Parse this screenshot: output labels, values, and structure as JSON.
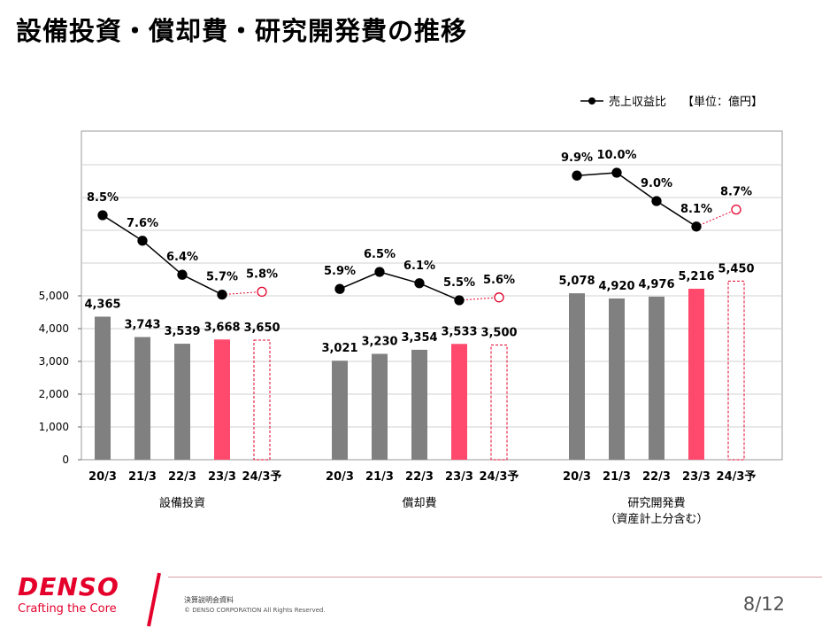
{
  "page": {
    "title": "設備投資・償却費・研究開発費の推移",
    "legend_label": "売上収益比",
    "unit": "【単位：億円】"
  },
  "chart_data": {
    "type": "bar",
    "y_axis": {
      "min": 0,
      "max": 5000,
      "step": 1000,
      "ticks": [
        "0",
        "1,000",
        "2,000",
        "3,000",
        "4,000",
        "5,000"
      ]
    },
    "groups": [
      {
        "label": "設備投資",
        "sublabel": "",
        "categories": [
          "20/3",
          "21/3",
          "22/3",
          "23/3",
          "24/3予"
        ],
        "values": [
          4365,
          3743,
          3539,
          3668,
          3650
        ],
        "value_labels": [
          "4,365",
          "3,743",
          "3,539",
          "3,668",
          "3,650"
        ],
        "ratios": [
          8.5,
          7.6,
          6.4,
          5.7,
          5.8
        ],
        "ratio_labels": [
          "8.5%",
          "7.6%",
          "6.4%",
          "5.7%",
          "5.8%"
        ]
      },
      {
        "label": "償却費",
        "sublabel": "",
        "categories": [
          "20/3",
          "21/3",
          "22/3",
          "23/3",
          "24/3予"
        ],
        "values": [
          3021,
          3230,
          3354,
          3533,
          3500
        ],
        "value_labels": [
          "3,021",
          "3,230",
          "3,354",
          "3,533",
          "3,500"
        ],
        "ratios": [
          5.9,
          6.5,
          6.1,
          5.5,
          5.6
        ],
        "ratio_labels": [
          "5.9%",
          "6.5%",
          "6.1%",
          "5.5%",
          "5.6%"
        ]
      },
      {
        "label": "研究開発費",
        "sublabel": "（資産計上分含む）",
        "categories": [
          "20/3",
          "21/3",
          "22/3",
          "23/3",
          "24/3予"
        ],
        "values": [
          5078,
          4920,
          4976,
          5216,
          5450
        ],
        "value_labels": [
          "5,078",
          "4,920",
          "4,976",
          "5,216",
          "5,450"
        ],
        "ratios": [
          9.9,
          10.0,
          9.0,
          8.1,
          8.7
        ],
        "ratio_labels": [
          "9.9%",
          "10.0%",
          "9.0%",
          "8.1%",
          "8.7%"
        ]
      }
    ],
    "bar_styles": [
      "actual",
      "actual",
      "actual",
      "latest",
      "forecast"
    ],
    "colors": {
      "actual": "#808080",
      "latest": "#ff4a6e",
      "forecast": "#e4002b",
      "line": "#000000",
      "forecast_line": "#e4002b"
    }
  },
  "footer": {
    "logo": "DENSO",
    "tagline": "Crafting the Core",
    "doc_label": "決算説明会資料",
    "copyright": "© DENSO CORPORATION All Rights Reserved.",
    "page": "8/12"
  }
}
